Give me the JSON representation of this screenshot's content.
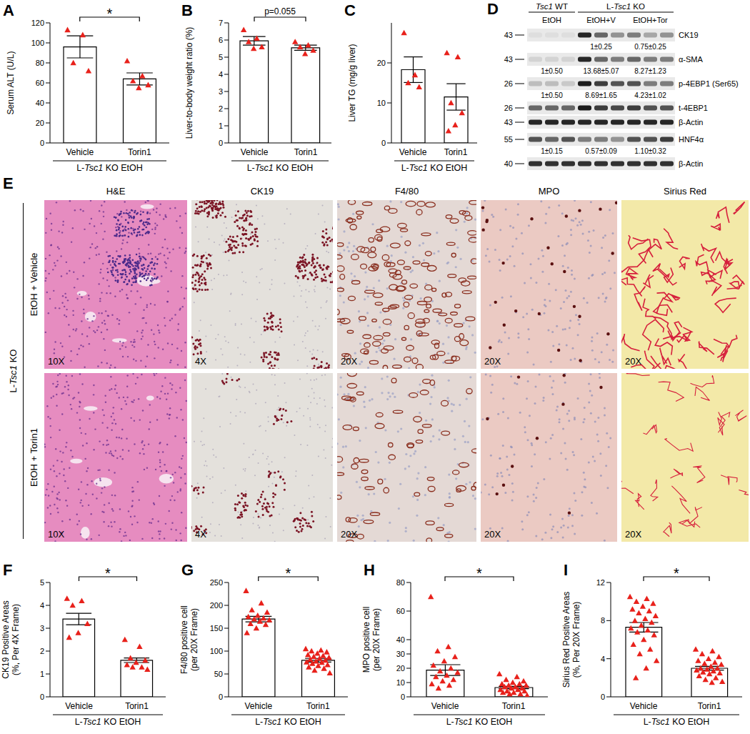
{
  "chart_data": [
    {
      "panel": "A",
      "type": "bar",
      "ylabel": "Serum ALT (U/L)",
      "xlabel": "L-Tsc1 KO EtOH",
      "categories": [
        "Vehicle",
        "Torin1"
      ],
      "values": [
        96,
        64
      ],
      "errors": [
        11,
        6
      ],
      "points": [
        [
          113,
          108,
          80,
          72
        ],
        [
          82,
          67,
          62,
          58,
          55
        ]
      ],
      "color": "#e8211b",
      "marker": "triangle",
      "ylim": [
        0,
        120
      ],
      "yticks": [
        0,
        20,
        40,
        60,
        80,
        100,
        120
      ],
      "annotations": [
        {
          "text": "*"
        }
      ]
    },
    {
      "panel": "B",
      "type": "bar",
      "ylabel": "Liver-to-body weight ratio (%)",
      "xlabel": "L-Tsc1 KO EtOH",
      "categories": [
        "Vehicle",
        "Torin1"
      ],
      "values": [
        5.95,
        5.55
      ],
      "errors": [
        0.25,
        0.15
      ],
      "points": [
        [
          6.6,
          6.1,
          5.9,
          5.6,
          5.5
        ],
        [
          5.9,
          5.7,
          5.6,
          5.4,
          5.2
        ]
      ],
      "color": "#e8211b",
      "marker": "triangle",
      "ylim": [
        0,
        7
      ],
      "yticks": [
        0,
        1,
        2,
        3,
        4,
        5,
        6,
        7
      ],
      "annotations": [
        {
          "text": "p=0.055"
        }
      ]
    },
    {
      "panel": "C",
      "type": "bar",
      "ylabel": "Liver TG (mg/g liver)",
      "xlabel": "L-Tsc1 KO EtOH",
      "categories": [
        "Vehicle",
        "Torin1"
      ],
      "values": [
        18.3,
        11.5
      ],
      "errors": [
        3.2,
        3.3
      ],
      "points": [
        [
          27.5,
          17,
          15,
          14
        ],
        [
          22.5,
          21.5,
          10,
          7.5,
          4.5,
          3
        ]
      ],
      "color": "#e8211b",
      "marker": "triangle",
      "ylim": [
        0,
        30
      ],
      "yticks": [
        0,
        10,
        20
      ],
      "annotations": []
    },
    {
      "panel": "F",
      "type": "bar",
      "ylabel": "CK19 Positive Areas (%, Per 4X Frame)",
      "xlabel": "L-Tsc1 KO EtOH",
      "categories": [
        "Vehicle",
        "Torin1"
      ],
      "values": [
        3.4,
        1.6
      ],
      "errors": [
        0.25,
        0.1
      ],
      "points": [
        [
          4.3,
          4.2,
          4.0,
          3.2,
          2.8,
          2.6
        ],
        [
          2.5,
          2.2,
          1.7,
          1.6,
          1.5,
          1.4,
          1.3,
          1.3,
          1.2
        ]
      ],
      "color": "#e8211b",
      "marker": "triangle",
      "ylim": [
        0,
        5
      ],
      "yticks": [
        0,
        1,
        2,
        3,
        4,
        5
      ],
      "annotations": [
        {
          "text": "*"
        }
      ]
    },
    {
      "panel": "G",
      "type": "bar",
      "ylabel": "F4/80 positive cell (per 20X Frame)",
      "xlabel": "L-Tsc1 KO EtOH",
      "categories": [
        "Vehicle",
        "Torin1"
      ],
      "values": [
        170,
        80
      ],
      "errors": [
        6,
        4
      ],
      "points": [
        [
          232,
          205,
          190,
          185,
          178,
          175,
          172,
          170,
          168,
          165,
          160,
          158,
          150,
          140
        ],
        [
          105,
          102,
          100,
          98,
          95,
          92,
          90,
          88,
          86,
          84,
          82,
          80,
          78,
          76,
          75,
          73,
          70,
          68,
          65,
          62,
          58,
          52
        ]
      ],
      "color": "#e8211b",
      "marker": "triangle",
      "ylim": [
        0,
        250
      ],
      "yticks": [
        0,
        50,
        100,
        150,
        200,
        250
      ],
      "annotations": [
        {
          "text": "*"
        }
      ]
    },
    {
      "panel": "H",
      "type": "bar",
      "ylabel": "MPO positive cell (per 20X Frame)",
      "xlabel": "L-Tsc1 KO EtOH",
      "categories": [
        "Vehicle",
        "Torin1"
      ],
      "values": [
        18.7,
        6.5
      ],
      "errors": [
        3.8,
        0.8
      ],
      "points": [
        [
          70,
          35,
          32,
          28,
          25,
          22,
          20,
          18,
          17,
          15,
          14,
          12,
          11,
          9,
          8,
          6
        ],
        [
          16,
          14,
          12,
          11,
          10,
          9,
          9,
          8,
          8,
          7,
          7,
          6,
          6,
          5,
          5,
          4,
          4,
          3,
          3,
          2,
          2,
          1
        ]
      ],
      "color": "#e8211b",
      "marker": "triangle",
      "ylim": [
        0,
        80
      ],
      "yticks": [
        0,
        10,
        20,
        30,
        40,
        60,
        80
      ],
      "annotations": [
        {
          "text": "*"
        }
      ]
    },
    {
      "panel": "I",
      "type": "bar",
      "ylabel": "Sirius Red Positive Areas (%, Per 20X Frame)",
      "xlabel": "L-Tsc1 KO EtOH",
      "categories": [
        "Vehicle",
        "Torin1"
      ],
      "values": [
        7.3,
        3.0
      ],
      "errors": [
        0.5,
        0.2
      ],
      "points": [
        [
          10.5,
          10.3,
          10,
          9.8,
          9.5,
          9.2,
          9,
          8.8,
          8.5,
          8.2,
          8,
          7.8,
          7.5,
          7.2,
          7,
          6.8,
          6.5,
          6,
          5.5,
          5,
          4.5,
          3.8,
          3,
          2
        ],
        [
          5,
          4.8,
          4.5,
          4.2,
          4,
          3.8,
          3.6,
          3.5,
          3.4,
          3.2,
          3,
          3,
          2.9,
          2.8,
          2.7,
          2.6,
          2.5,
          2.4,
          2.2,
          2,
          1.8,
          1.6,
          1.5
        ]
      ],
      "color": "#e8211b",
      "marker": "triangle",
      "ylim": [
        0,
        12
      ],
      "yticks": [
        0,
        4,
        8,
        12
      ],
      "annotations": [
        {
          "text": "*"
        }
      ]
    }
  ],
  "blot": {
    "panel": "D",
    "groups": [
      {
        "label": "Tsc1 WT",
        "treatments": [
          {
            "label": "EtOH",
            "lanes": 3
          }
        ]
      },
      {
        "label": "L-Tsc1 KO",
        "treatments": [
          {
            "label": "EtOH+V",
            "lanes": 3
          },
          {
            "label": "EtOH+Tor",
            "lanes": 3
          }
        ]
      }
    ],
    "rows": [
      {
        "label": "CK19",
        "mw": 43,
        "intensities": [
          0.05,
          0.05,
          0.05,
          0.9,
          0.6,
          0.4,
          0.5,
          0.3,
          0.4
        ],
        "quant": [
          null,
          "1±0.25",
          "0.75±0.25"
        ]
      },
      {
        "label": "α-SMA",
        "mw": 43,
        "intensities": [
          0.1,
          0.1,
          0.1,
          0.9,
          0.6,
          0.5,
          0.6,
          0.5,
          0.5
        ],
        "quant": [
          "1±0.50",
          "13.68±5.07",
          "8.27±1.23"
        ]
      },
      {
        "label": "p-4EBP1 (Ser65)",
        "mw": 26,
        "intensities": [
          0.2,
          0.2,
          0.15,
          0.95,
          0.8,
          0.7,
          0.7,
          0.5,
          0.5
        ],
        "quant": [
          "1±0.50",
          "8.69±1.65",
          "4.23±1.02"
        ]
      },
      {
        "label": "t-4EBP1",
        "mw": 26,
        "intensities": [
          0.6,
          0.6,
          0.6,
          0.95,
          0.8,
          0.75,
          0.8,
          0.7,
          0.7
        ],
        "quant": null
      },
      {
        "label": "β-Actin",
        "mw": 43,
        "intensities": [
          0.9,
          0.9,
          0.9,
          0.9,
          0.9,
          0.9,
          0.9,
          0.9,
          0.9
        ],
        "quant": null
      },
      {
        "label": "HNF4α",
        "mw": 55,
        "intensities": [
          0.7,
          0.6,
          0.7,
          0.5,
          0.5,
          0.4,
          0.7,
          0.7,
          0.8
        ],
        "quant": [
          "1±0.15",
          "0.57±0.09",
          "1.10±0.32"
        ]
      },
      {
        "label": "β-Actin",
        "mw": 40,
        "intensities": [
          0.85,
          0.85,
          0.85,
          0.85,
          0.85,
          0.85,
          0.85,
          0.85,
          0.85
        ],
        "quant": null
      }
    ]
  },
  "histology": {
    "panel": "E",
    "group": "L-Tsc1 KO",
    "rows": [
      "EtOH + Vehicle",
      "EtOH + Torin1"
    ],
    "columns": [
      {
        "title": "H&E",
        "magnification": "10X"
      },
      {
        "title": "CK19",
        "magnification": "4X"
      },
      {
        "title": "F4/80",
        "magnification": "20X"
      },
      {
        "title": "MPO",
        "magnification": "20X"
      },
      {
        "title": "Sirius Red",
        "magnification": "20X"
      }
    ]
  }
}
